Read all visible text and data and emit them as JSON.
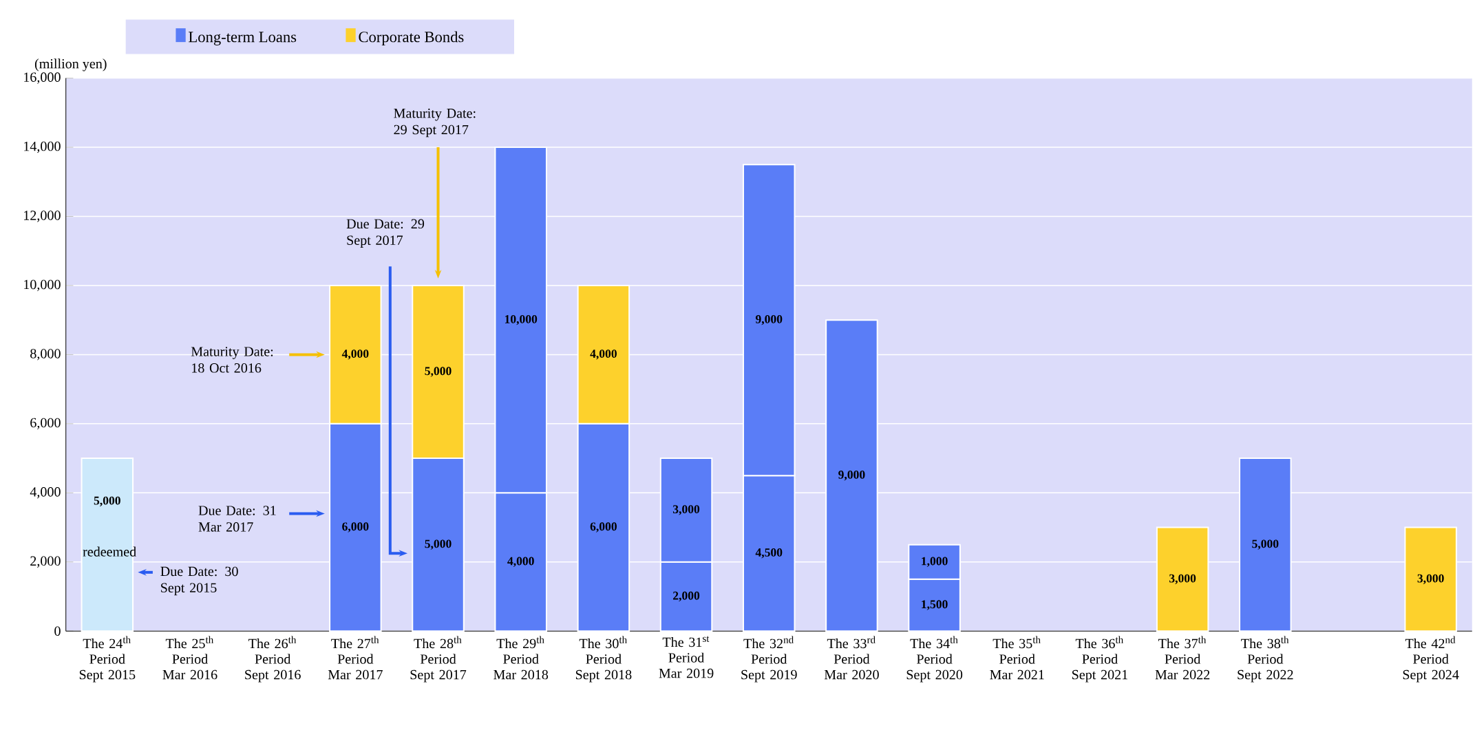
{
  "chart_data": {
    "type": "bar",
    "stacked": true,
    "ylabel": "(million yen)",
    "categories": [
      "The 24$^{th}$ Period Sept 2015",
      "The 25$^{th}$ Period Mar 2016",
      "The 26$^{th}$ Period Sept 2016",
      "The 27$^{th}$ Period Mar 2017",
      "The 28$^{th}$ Period Sept 2017",
      "The 29$^{th}$ Period Mar 2018",
      "The 30$^{th}$ Period Sept 2018",
      "The 31$^{st}$ Period Mar 2019",
      "The 32$^{nd}$ Period Sept 2019",
      "The 33$^{rd}$ Period Mar 2020",
      "The 34$^{th}$ Period Sept 2020",
      "The 35$^{th}$ Period Mar 2021",
      "The 36$^{th}$ Period Sept 2021",
      "The 37$^{th}$ Period Mar 2022",
      "The 38$^{th}$ Period Sept 2022",
      null,
      "The 42$^{nd}$ Period Sept 2024"
    ],
    "series": [
      {
        "name": "Long-term Loans",
        "color": "#5a7df7",
        "colors": [
          "#cce9fb",
          "#5a7df7",
          "#5a7df7",
          "#5a7df7",
          "#5a7df7",
          "#5a7df7",
          "#5a7df7",
          "#5a7df7",
          "#5a7df7",
          "#5a7df7",
          "#5a7df7",
          "#5a7df7",
          "#5a7df7",
          "#5a7df7",
          "#5a7df7",
          "#5a7df7",
          "#5a7df7"
        ],
        "values": [
          5000,
          null,
          null,
          6000,
          5000,
          4000,
          6000,
          2000,
          4500,
          9000,
          1500,
          null,
          null,
          null,
          5000,
          null,
          null
        ],
        "value_labels": [
          "5,000",
          null,
          null,
          "6,000",
          "5,000",
          "4,000",
          "6,000",
          "2,000",
          "4,500",
          "9,000",
          "1,500",
          null,
          null,
          null,
          "5,000",
          null,
          null
        ]
      },
      {
        "color": "#5a7df7",
        "values": [
          null,
          null,
          null,
          null,
          null,
          10000,
          null,
          3000,
          9000,
          null,
          1000,
          null,
          null,
          null,
          null,
          null,
          null
        ],
        "value_labels": [
          null,
          null,
          null,
          null,
          null,
          "10,000",
          null,
          "3,000",
          "9,000",
          null,
          "1,000",
          null,
          null,
          null,
          null,
          null,
          null
        ]
      },
      {
        "name": "Corporate Bonds",
        "color": "#fdd12c",
        "values": [
          null,
          null,
          null,
          4000,
          5000,
          null,
          4000,
          null,
          null,
          null,
          null,
          null,
          null,
          3000,
          null,
          null,
          3000
        ],
        "value_labels": [
          null,
          null,
          null,
          "4,000",
          "5,000",
          null,
          "4,000",
          null,
          null,
          null,
          null,
          null,
          null,
          "3,000",
          null,
          null,
          "3,000"
        ]
      }
    ],
    "ylim": [
      0,
      16000
    ],
    "yticks": [
      0,
      {
        "value": 2000,
        "label": "2,000"
      },
      {
        "value": 4000,
        "label": "4,000"
      },
      {
        "value": 6000,
        "label": "6,000"
      },
      {
        "value": 8000,
        "label": "8,000"
      },
      {
        "value": 10000,
        "label": "10,000"
      },
      {
        "value": 12000,
        "label": "12,000"
      },
      {
        "value": 14000,
        "label": "14,000"
      },
      {
        "value": 16000,
        "label": "16,000"
      }
    ],
    "grid": "y",
    "legend": "top left",
    "annotations": [
      "Due Date: 30 Sept 2015",
      "redeemed",
      "Maturity Date: 18 Oct 2016",
      "Due Date: 31 Mar 2017",
      "Due Date: 29 Sept 2017",
      "Maturity Date: 29 Sept 2017"
    ]
  }
}
